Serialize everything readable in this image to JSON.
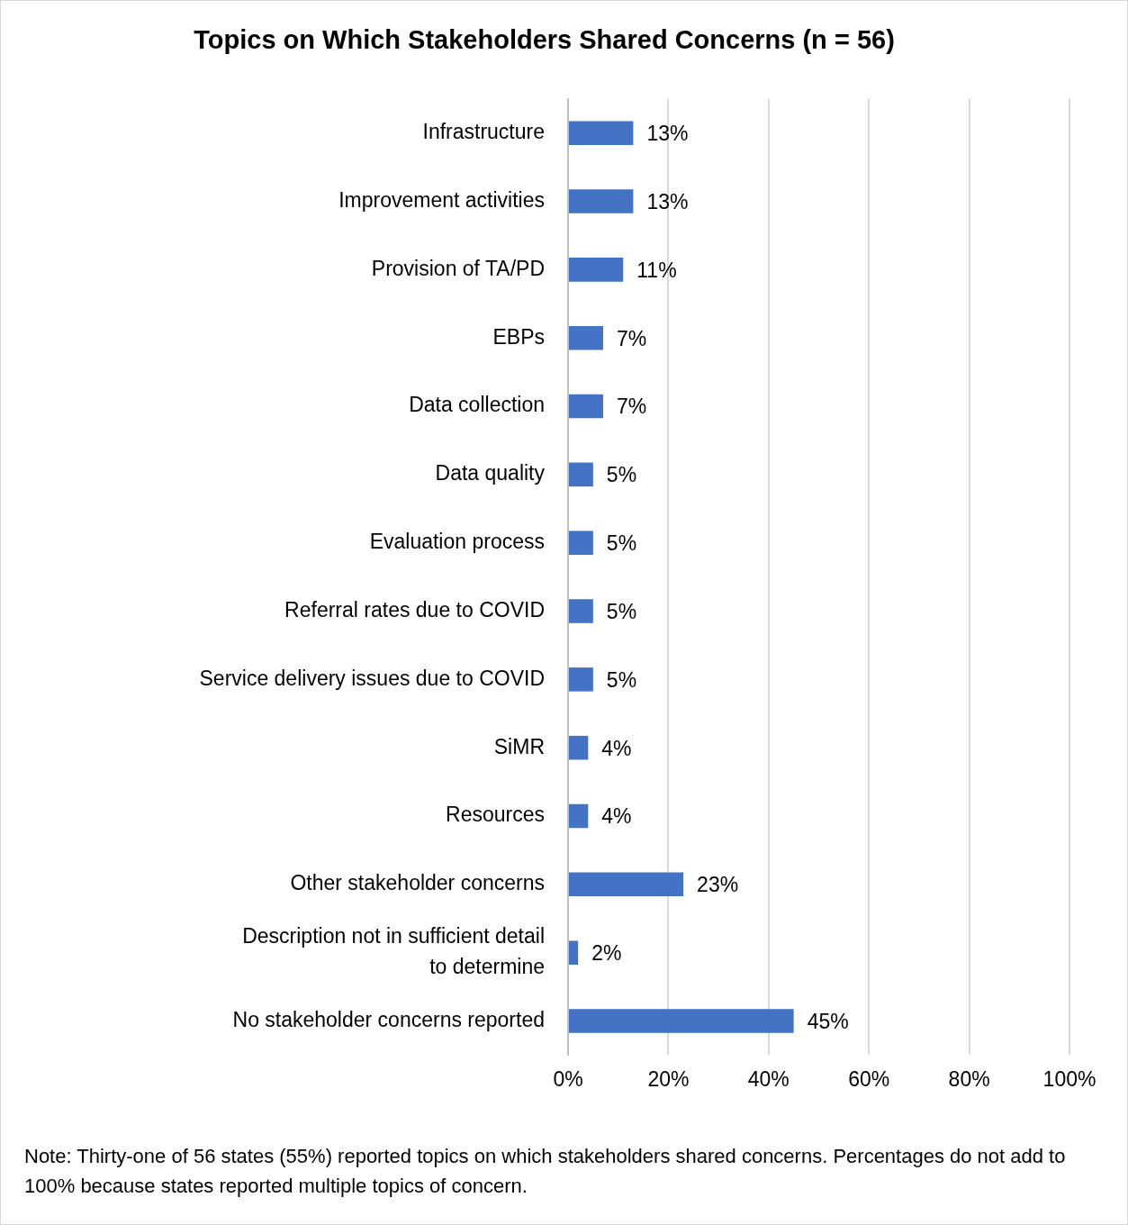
{
  "chart_data": {
    "type": "bar",
    "orientation": "horizontal",
    "title": "Topics on Which Stakeholders Shared Concerns (n = 56)",
    "categories": [
      "Infrastructure",
      "Improvement activities",
      "Provision of TA/PD",
      "EBPs",
      "Data collection",
      "Data quality",
      "Evaluation process",
      "Referral rates due to COVID",
      "Service delivery issues due to COVID",
      "SiMR",
      "Resources",
      "Other stakeholder concerns",
      "Description not in sufficient detail to determine",
      "No stakeholder concerns reported"
    ],
    "values": [
      13,
      13,
      11,
      7,
      7,
      5,
      5,
      5,
      5,
      4,
      4,
      23,
      2,
      45
    ],
    "value_labels": [
      "13%",
      "13%",
      "11%",
      "7%",
      "7%",
      "5%",
      "5%",
      "5%",
      "5%",
      "4%",
      "4%",
      "23%",
      "2%",
      "45%"
    ],
    "color": "#4472c4",
    "xlim": [
      0,
      100
    ],
    "xticks": [
      {
        "value": 0,
        "label": "0%"
      },
      {
        "value": 20,
        "label": "20%"
      },
      {
        "value": 40,
        "label": "40%"
      },
      {
        "value": 60,
        "label": "60%"
      },
      {
        "value": 80,
        "label": "80%"
      },
      {
        "value": 100,
        "label": "100%"
      }
    ],
    "grid": "x",
    "legend": false,
    "annotations": [
      "Note:  Thirty-one of 56 states (55%) reported topics on which stakeholders shared concerns.  Percentages do not add to 100% because states reported multiple topics of concern."
    ]
  }
}
